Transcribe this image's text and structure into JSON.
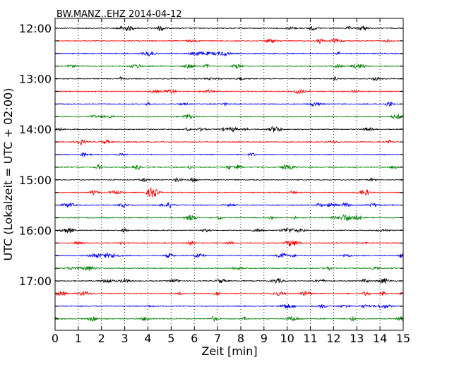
{
  "chart_data": {
    "type": "line",
    "title": "BW.MANZ..EHZ 2014-04-12",
    "xlabel": "Zeit  [min]",
    "ylabel": "UTC (Lokalzeit = UTC + 02:00)",
    "xlim": [
      0,
      15
    ],
    "x_ticks": [
      "0",
      "1",
      "2",
      "3",
      "4",
      "5",
      "6",
      "7",
      "8",
      "9",
      "10",
      "11",
      "12",
      "13",
      "14",
      "15"
    ],
    "y_tick_labels": [
      "12:00",
      "13:00",
      "14:00",
      "15:00",
      "16:00",
      "17:00"
    ],
    "trace_minutes": 15,
    "trace_start_times": [
      "12:00",
      "12:15",
      "12:30",
      "12:45",
      "13:00",
      "13:15",
      "13:30",
      "13:45",
      "14:00",
      "14:15",
      "14:30",
      "14:45",
      "15:00",
      "15:15",
      "15:30",
      "15:45",
      "16:00",
      "16:15",
      "16:30",
      "16:45",
      "17:00",
      "17:15",
      "17:30",
      "17:45"
    ],
    "trace_colors": [
      "#000000",
      "#ff0000",
      "#0000ff",
      "#008000"
    ],
    "vertical_grid": "dotted",
    "grid_x": [
      1,
      2,
      3,
      4,
      5,
      6,
      7,
      8,
      9,
      10,
      11,
      12,
      13,
      14
    ]
  }
}
